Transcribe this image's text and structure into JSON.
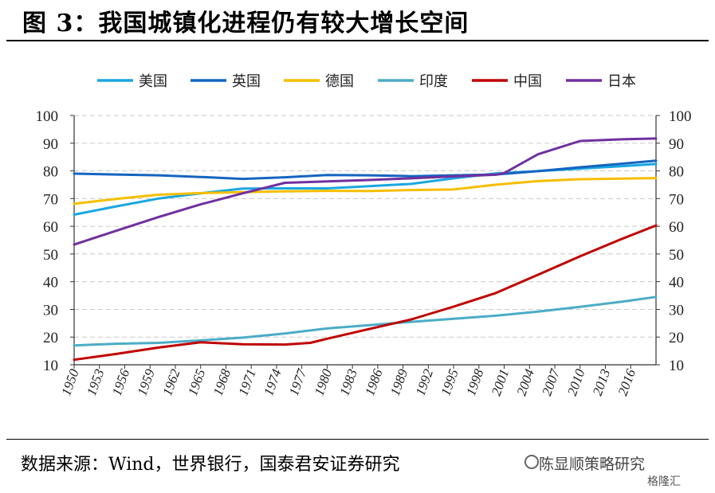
{
  "figure": {
    "title": "图 3：我国城镇化进程仍有较大增长空间",
    "source": "数据来源：Wind，世界银行，国泰君安证券研究",
    "watermark": "陈显顺策略研究",
    "watermark_brand": "格隆汇"
  },
  "chart_data": {
    "type": "line",
    "xlabel": "",
    "ylabel": "",
    "ylim": [
      10,
      100
    ],
    "y_ticks": [
      10,
      20,
      30,
      40,
      50,
      60,
      70,
      80,
      90,
      100
    ],
    "y2_ticks": [
      10,
      20,
      30,
      40,
      50,
      60,
      70,
      80,
      90,
      100
    ],
    "x_tick_labels": [
      "1950",
      "1953",
      "1956",
      "1959",
      "1962",
      "1965",
      "1968",
      "1971",
      "1974",
      "1977",
      "1980",
      "1983",
      "1986",
      "1989",
      "1992",
      "1995",
      "1998",
      "2001",
      "2004",
      "2007",
      "2010",
      "2013",
      "2016"
    ],
    "x_range": [
      1950,
      2019
    ],
    "grid": "horizontal dashed",
    "legend_position": "top",
    "series": [
      {
        "name": "美国",
        "color": "#1AA7E0",
        "x": [
          1950,
          1955,
          1960,
          1965,
          1970,
          1975,
          1980,
          1985,
          1990,
          1995,
          2000,
          2005,
          2010,
          2015,
          2019
        ],
        "y": [
          64.2,
          67.2,
          70.0,
          71.9,
          73.6,
          73.7,
          73.7,
          74.5,
          75.3,
          77.3,
          79.1,
          79.9,
          80.8,
          81.7,
          82.5
        ]
      },
      {
        "name": "英国",
        "color": "#1565C0",
        "x": [
          1950,
          1955,
          1960,
          1965,
          1970,
          1975,
          1980,
          1985,
          1990,
          1995,
          2000,
          2005,
          2010,
          2015,
          2019
        ],
        "y": [
          79.0,
          78.7,
          78.4,
          77.8,
          77.1,
          77.7,
          78.5,
          78.4,
          78.1,
          78.4,
          78.7,
          79.9,
          81.3,
          82.6,
          83.7
        ]
      },
      {
        "name": "德国",
        "color": "#F6BE00",
        "x": [
          1950,
          1955,
          1960,
          1965,
          1970,
          1975,
          1980,
          1985,
          1990,
          1995,
          2000,
          2005,
          2010,
          2015,
          2019
        ],
        "y": [
          68.1,
          69.9,
          71.4,
          72.0,
          72.3,
          72.6,
          72.8,
          72.7,
          73.1,
          73.3,
          75.0,
          76.3,
          77.0,
          77.2,
          77.4
        ]
      },
      {
        "name": "印度",
        "color": "#4BACC6",
        "x": [
          1950,
          1955,
          1960,
          1965,
          1970,
          1975,
          1980,
          1985,
          1990,
          1995,
          2000,
          2005,
          2010,
          2015,
          2019
        ],
        "y": [
          17.0,
          17.6,
          17.9,
          18.8,
          19.8,
          21.3,
          23.1,
          24.3,
          25.5,
          26.6,
          27.7,
          29.2,
          30.9,
          32.8,
          34.5
        ]
      },
      {
        "name": "中国",
        "color": "#C00000",
        "x": [
          1950,
          1955,
          1960,
          1965,
          1970,
          1975,
          1978,
          1980,
          1985,
          1990,
          1995,
          2000,
          2005,
          2010,
          2015,
          2019
        ],
        "y": [
          11.8,
          13.9,
          16.2,
          18.1,
          17.4,
          17.3,
          17.9,
          19.4,
          22.9,
          26.4,
          31.0,
          35.9,
          42.5,
          49.2,
          55.5,
          60.3
        ]
      },
      {
        "name": "日本",
        "color": "#7030A0",
        "x": [
          1950,
          1955,
          1960,
          1965,
          1970,
          1975,
          1980,
          1985,
          1990,
          1995,
          2000,
          2001,
          2005,
          2010,
          2015,
          2019
        ],
        "y": [
          53.4,
          58.4,
          63.3,
          67.9,
          71.9,
          75.7,
          76.2,
          76.7,
          77.3,
          78.0,
          78.6,
          79.2,
          86.0,
          90.8,
          91.4,
          91.7
        ]
      }
    ]
  }
}
